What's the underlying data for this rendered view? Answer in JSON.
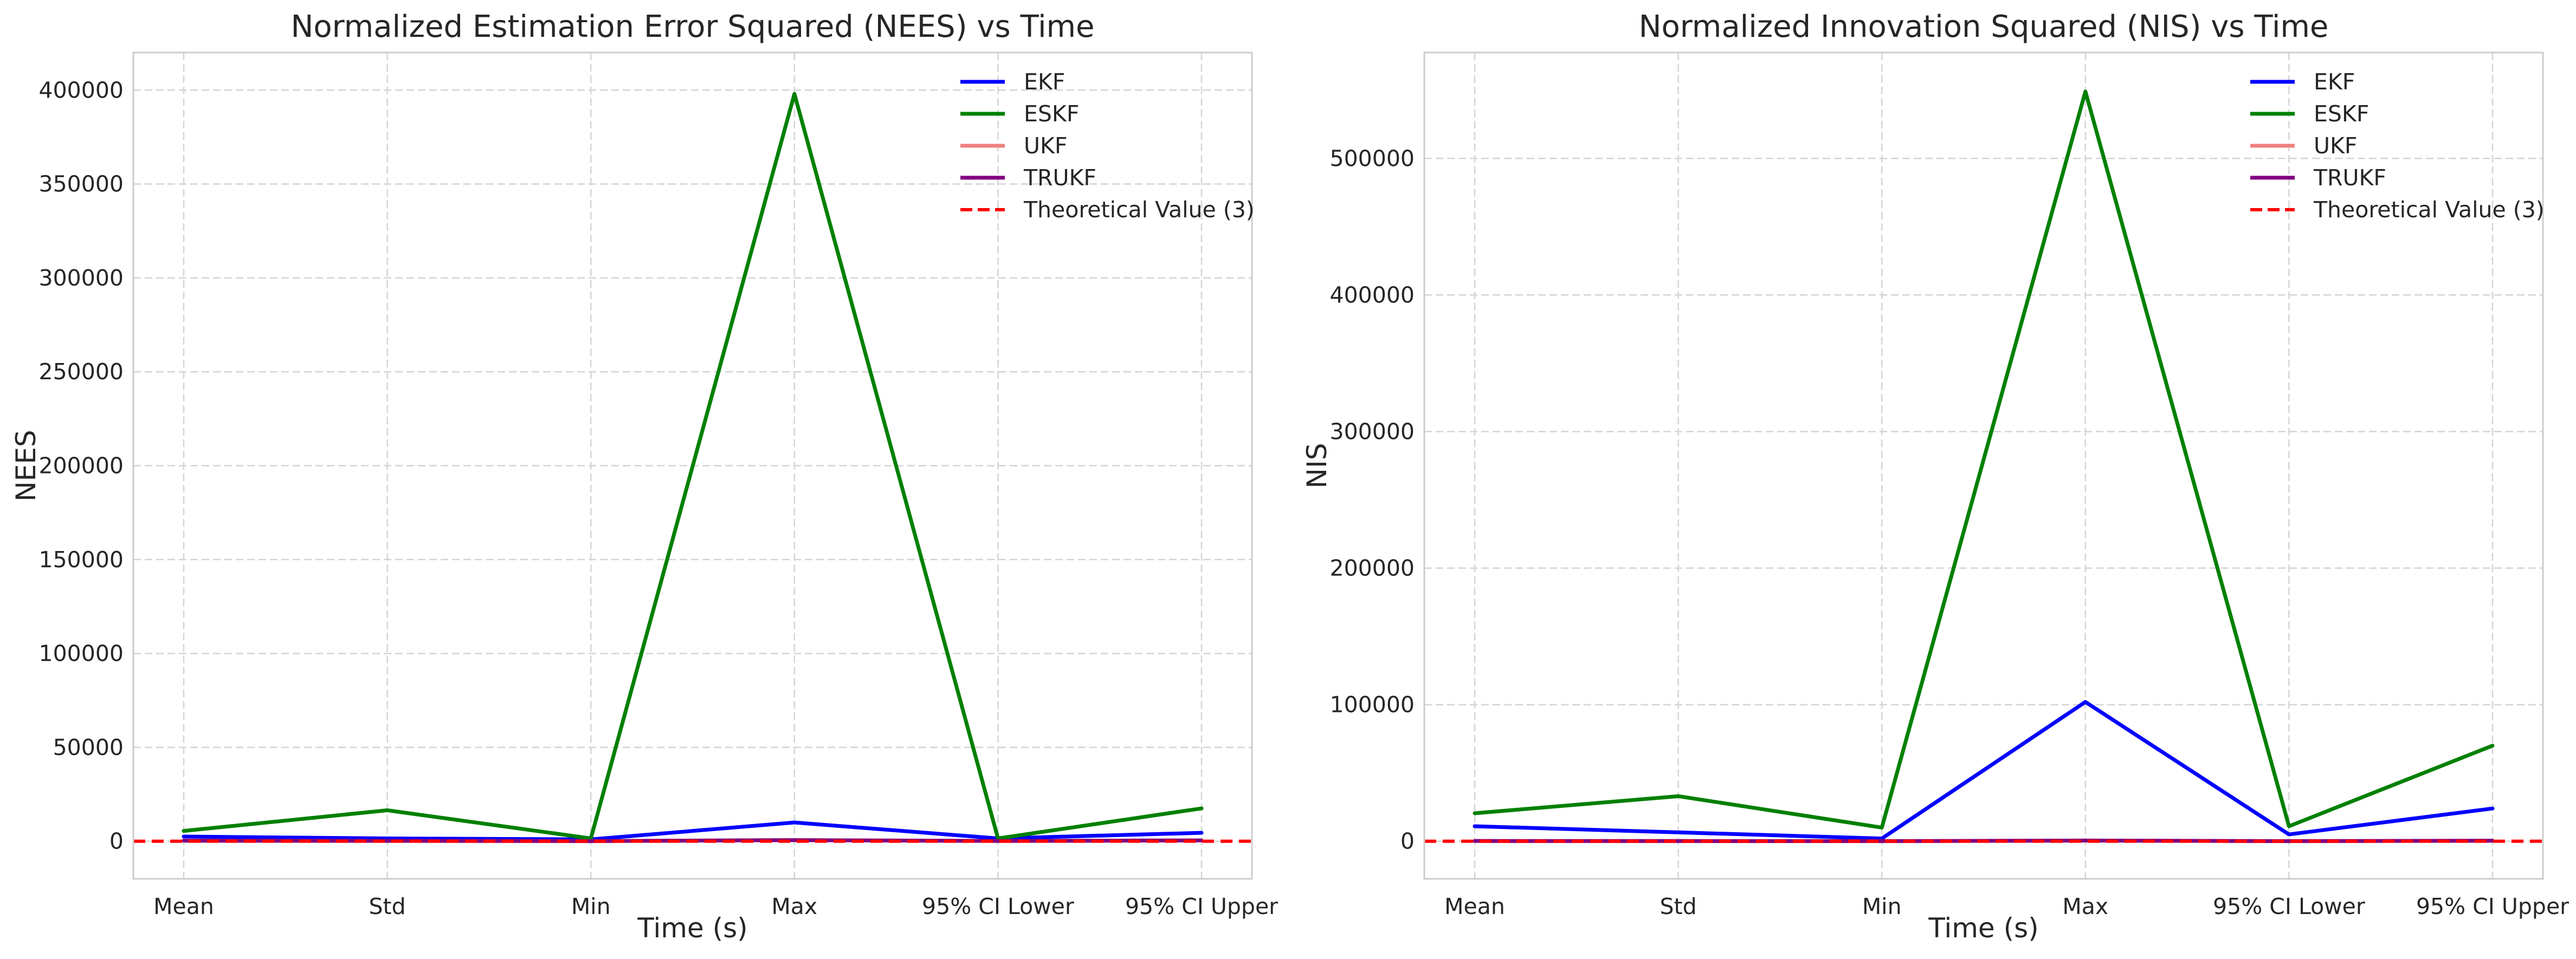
{
  "chart_data": [
    {
      "type": "line",
      "title": "Normalized Estimation Error Squared (NEES) vs Time",
      "xlabel": "Time (s)",
      "ylabel": "NEES",
      "categories": [
        "Mean",
        "Std",
        "Min",
        "Max",
        "95% CI Lower",
        "95% CI Upper"
      ],
      "ylim": [
        -20000,
        420000
      ],
      "yticks": [
        0,
        50000,
        100000,
        150000,
        200000,
        250000,
        300000,
        350000,
        400000
      ],
      "grid": true,
      "legend_position": "top-right",
      "series": [
        {
          "name": "EKF",
          "color": "#0000ff",
          "values": [
            2500,
            1500,
            1000,
            10000,
            1500,
            4500
          ]
        },
        {
          "name": "ESKF",
          "color": "#008000",
          "values": [
            5500,
            16500,
            1500,
            398000,
            1500,
            17500
          ]
        },
        {
          "name": "UKF",
          "color": "#f08080",
          "values": [
            300,
            200,
            100,
            600,
            150,
            450
          ]
        },
        {
          "name": "TRUKF",
          "color": "#800080",
          "values": [
            300,
            200,
            100,
            600,
            150,
            450
          ]
        }
      ],
      "reference_line": {
        "name": "Theoretical Value (3)",
        "value": 3,
        "color": "#ff0000",
        "style": "dashed"
      }
    },
    {
      "type": "line",
      "title": "Normalized Innovation Squared (NIS) vs Time",
      "xlabel": "Time (s)",
      "ylabel": "NIS",
      "categories": [
        "Mean",
        "Std",
        "Min",
        "Max",
        "95% CI Lower",
        "95% CI Upper"
      ],
      "ylim": [
        -27500,
        577500
      ],
      "yticks": [
        0,
        100000,
        200000,
        300000,
        400000,
        500000
      ],
      "grid": true,
      "legend_position": "top-right",
      "series": [
        {
          "name": "EKF",
          "color": "#0000ff",
          "values": [
            11000,
            6500,
            2000,
            102000,
            5000,
            24000
          ]
        },
        {
          "name": "ESKF",
          "color": "#008000",
          "values": [
            20500,
            33000,
            10000,
            549000,
            11000,
            70000
          ]
        },
        {
          "name": "UKF",
          "color": "#f08080",
          "values": [
            200,
            150,
            100,
            500,
            100,
            400
          ]
        },
        {
          "name": "TRUKF",
          "color": "#800080",
          "values": [
            200,
            150,
            100,
            500,
            100,
            400
          ]
        }
      ],
      "reference_line": {
        "name": "Theoretical Value (3)",
        "value": 3,
        "color": "#ff0000",
        "style": "dashed"
      }
    }
  ]
}
